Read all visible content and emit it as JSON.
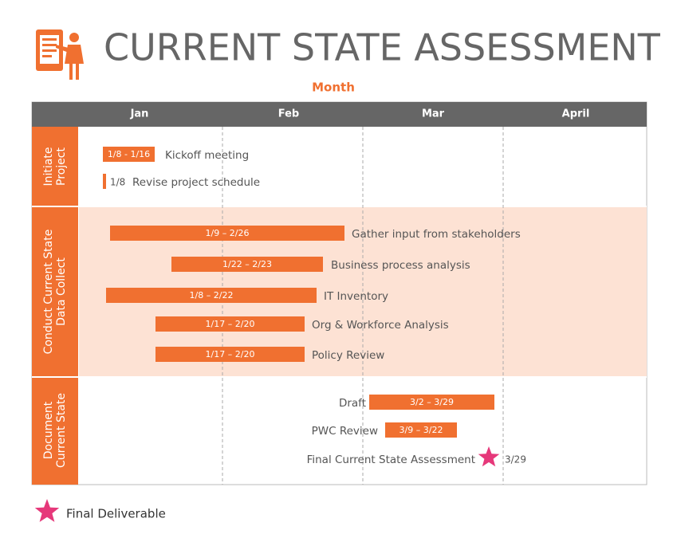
{
  "title": "CURRENT STATE ASSESSMENT",
  "axis_label": "Month",
  "months": [
    "Jan",
    "Feb",
    "Mar",
    "April"
  ],
  "phases": [
    {
      "lines": [
        "Initiate",
        "Project"
      ]
    },
    {
      "lines": [
        "Conduct Current State",
        "Data Collect"
      ]
    },
    {
      "lines": [
        "Document",
        "Current State"
      ]
    }
  ],
  "tasks": [
    {
      "name": "Kickoff meeting",
      "dates": "1/8 - 1/16"
    },
    {
      "name": "Revise project schedule",
      "dates": "1/8"
    },
    {
      "name": "Gather input from stakeholders",
      "dates": "1/9 – 2/26"
    },
    {
      "name": "Business process analysis",
      "dates": "1/22 – 2/23"
    },
    {
      "name": "IT Inventory",
      "dates": "1/8 – 2/22"
    },
    {
      "name": "Org & Workforce Analysis",
      "dates": "1/17 – 2/20"
    },
    {
      "name": "Policy Review",
      "dates": "1/17 – 2/20"
    },
    {
      "name": "Draft",
      "dates": "3/2 – 3/29"
    },
    {
      "name": "PWC Review",
      "dates": "3/9 – 3/22"
    },
    {
      "name": "Final Current State Assessment",
      "dates": "3/29"
    }
  ],
  "legend": "Final Deliverable"
}
